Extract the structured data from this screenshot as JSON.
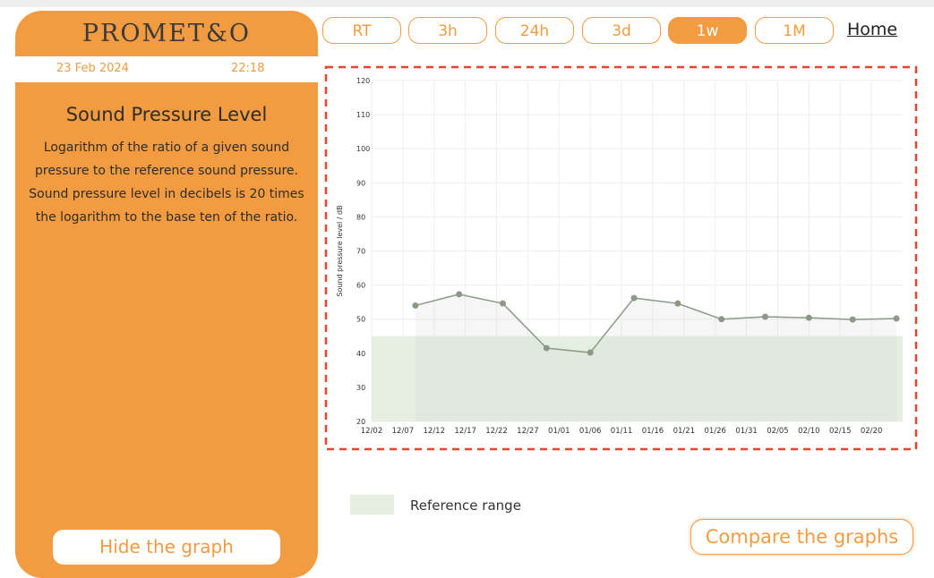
{
  "header": {
    "logo": "PROMET&O",
    "date": "23 Feb 2024",
    "time": "22:18"
  },
  "info": {
    "title": "Sound Pressure Level",
    "lines": [
      "Logarithm of the ratio of a given sound",
      "pressure to the reference sound pressure.",
      "Sound pressure level in decibels is 20 times",
      "the logarithm to the base ten of the ratio."
    ]
  },
  "nav": {
    "ranges": [
      "RT",
      "3h",
      "24h",
      "3d",
      "1w",
      "1M"
    ],
    "home": "Home"
  },
  "buttons": {
    "hide": "Hide the graph",
    "compare": "Compare the graphs"
  },
  "chart_data": {
    "type": "line",
    "y_label": "Sound pressure level / dB",
    "x": [
      "12/09",
      "12/16",
      "12/23",
      "12/30",
      "01/06",
      "01/13",
      "01/20",
      "01/27",
      "02/03",
      "02/10",
      "02/17",
      "02/24"
    ],
    "values": [
      54,
      57.3,
      54.6,
      41.5,
      40.2,
      56.2,
      54.6,
      50,
      50.7,
      50.4,
      49.9,
      50.2
    ],
    "color": "#8a9a86",
    "area": true,
    "xlim": [
      "12/02",
      "02/25"
    ],
    "xticks": [
      "12/02",
      "12/07",
      "12/12",
      "12/17",
      "12/22",
      "12/27",
      "01/01",
      "01/06",
      "01/11",
      "01/16",
      "01/21",
      "01/26",
      "01/31",
      "02/05",
      "02/10",
      "02/15",
      "02/20"
    ],
    "ylim": [
      20,
      120
    ],
    "yticks": [
      20,
      30,
      40,
      50,
      60,
      70,
      80,
      90,
      100,
      110,
      120
    ],
    "grid": true,
    "reference_range": {
      "label": "Reference range",
      "values": [
        20,
        45
      ],
      "color": "#e4efe1"
    }
  }
}
